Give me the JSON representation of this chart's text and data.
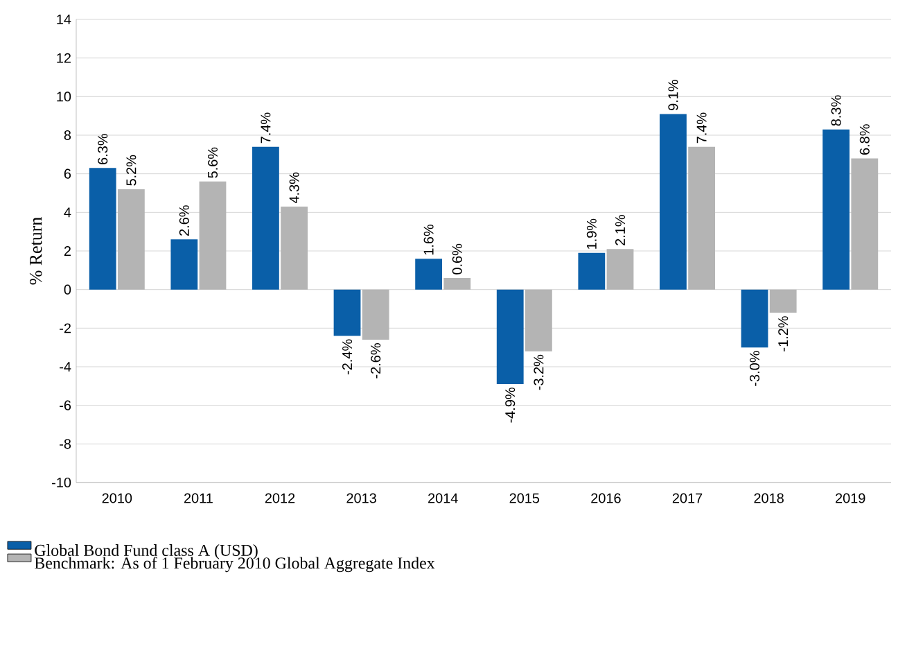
{
  "chart_data": {
    "type": "bar",
    "ylabel": "% Return",
    "categories": [
      "2010",
      "2011",
      "2012",
      "2013",
      "2014",
      "2015",
      "2016",
      "2017",
      "2018",
      "2019"
    ],
    "series": [
      {
        "name": "Global Bond Fund class A (USD)",
        "color": "#0a5fa8",
        "values": [
          6.3,
          2.6,
          7.4,
          -2.4,
          1.6,
          -4.9,
          1.9,
          9.1,
          -3.0,
          8.3
        ],
        "value_labels": [
          "6.3%",
          "2.6%",
          "7.4%",
          "-2.4%",
          "1.6%",
          "-4.9%",
          "1.9%",
          "9.1%",
          "-3.0%",
          "8.3%"
        ]
      },
      {
        "name": "Benchmark: As of 1 February 2010 Global Aggregate Index",
        "color": "#b4b4b4",
        "values": [
          5.2,
          5.6,
          4.3,
          -2.6,
          0.6,
          -3.2,
          2.1,
          7.4,
          -1.2,
          6.8
        ],
        "value_labels": [
          "5.2%",
          "5.6%",
          "4.3%",
          "-2.6%",
          "0.6%",
          "-3.2%",
          "2.1%",
          "7.4%",
          "-1.2%",
          "6.8%"
        ]
      }
    ],
    "ylim": [
      -10,
      14
    ],
    "yticks": [
      -10,
      -8,
      -6,
      -4,
      -2,
      0,
      2,
      4,
      6,
      8,
      10,
      12,
      14
    ],
    "grid": "y",
    "legend": "bottom"
  }
}
